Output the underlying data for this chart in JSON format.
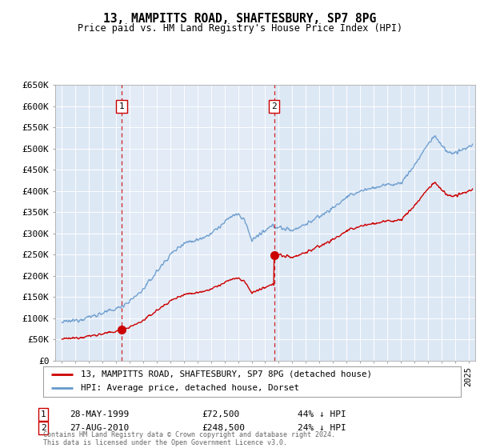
{
  "title": "13, MAMPITTS ROAD, SHAFTESBURY, SP7 8PG",
  "subtitle": "Price paid vs. HM Land Registry's House Price Index (HPI)",
  "ylabel_ticks": [
    "£0",
    "£50K",
    "£100K",
    "£150K",
    "£200K",
    "£250K",
    "£300K",
    "£350K",
    "£400K",
    "£450K",
    "£500K",
    "£550K",
    "£600K",
    "£650K"
  ],
  "ytick_vals": [
    0,
    50000,
    100000,
    150000,
    200000,
    250000,
    300000,
    350000,
    400000,
    450000,
    500000,
    550000,
    600000,
    650000
  ],
  "xlim": [
    1994.5,
    2025.5
  ],
  "ylim": [
    0,
    650000
  ],
  "background_color": "#dde8f5",
  "plot_bg": "#dde8f5",
  "grid_color": "#ffffff",
  "sale1_x": 1999.4,
  "sale1_y": 72500,
  "sale1_label": "1",
  "sale1_date": "28-MAY-1999",
  "sale1_price": "£72,500",
  "sale1_hpi": "44% ↓ HPI",
  "sale2_x": 2010.65,
  "sale2_y": 248500,
  "sale2_label": "2",
  "sale2_date": "27-AUG-2010",
  "sale2_price": "£248,500",
  "sale2_hpi": "24% ↓ HPI",
  "legend_line1": "13, MAMPITTS ROAD, SHAFTESBURY, SP7 8PG (detached house)",
  "legend_line2": "HPI: Average price, detached house, Dorset",
  "footer": "Contains HM Land Registry data © Crown copyright and database right 2024.\nThis data is licensed under the Open Government Licence v3.0.",
  "line_color_red": "#cc0000",
  "line_color_blue": "#6699cc",
  "sale_dot_color": "#cc0000",
  "vline_color": "#cc0000",
  "shade_color": "#d0dff0"
}
